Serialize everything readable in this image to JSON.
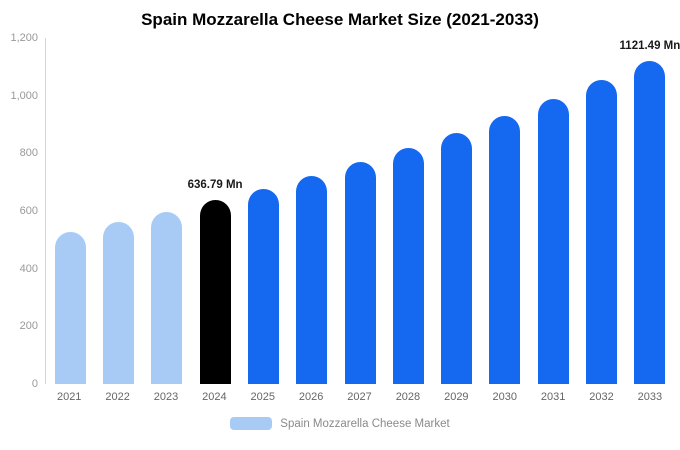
{
  "chart_data": {
    "type": "bar",
    "title": "Spain Mozzarella Cheese Market Size (2021-2033)",
    "categories": [
      "2021",
      "2022",
      "2023",
      "2024",
      "2025",
      "2026",
      "2027",
      "2028",
      "2029",
      "2030",
      "2031",
      "2032",
      "2033"
    ],
    "values": [
      527,
      561,
      598,
      636.79,
      678,
      722,
      769,
      819,
      872,
      929,
      989,
      1053,
      1121.49
    ],
    "bar_colors": [
      "#a8cbf5",
      "#a8cbf5",
      "#a8cbf5",
      "#000000",
      "#1569f0",
      "#1569f0",
      "#1569f0",
      "#1569f0",
      "#1569f0",
      "#1569f0",
      "#1569f0",
      "#1569f0",
      "#1569f0"
    ],
    "bar_labels": [
      "",
      "",
      "",
      "636.79 Mn",
      "",
      "",
      "",
      "",
      "",
      "",
      "",
      "",
      "1121.49 Mn"
    ],
    "series": [
      {
        "name": "Spain Mozzarella Cheese Market",
        "values": [
          527,
          561,
          598,
          636.79,
          678,
          722,
          769,
          819,
          872,
          929,
          989,
          1053,
          1121.49
        ]
      }
    ],
    "xlabel": "",
    "ylabel": "",
    "ylim": [
      0,
      1200
    ],
    "y_ticks": [
      "0",
      "200",
      "400",
      "600",
      "800",
      "1,000",
      "1,200"
    ],
    "y_tick_step": 200,
    "grid": false,
    "legend_position": "bottom",
    "legend": {
      "label": "Spain Mozzarella Cheese Market",
      "swatch_color": "#a8cbf5"
    },
    "colors": {
      "historical": "#a8cbf5",
      "base_year": "#000000",
      "forecast": "#1569f0"
    }
  }
}
